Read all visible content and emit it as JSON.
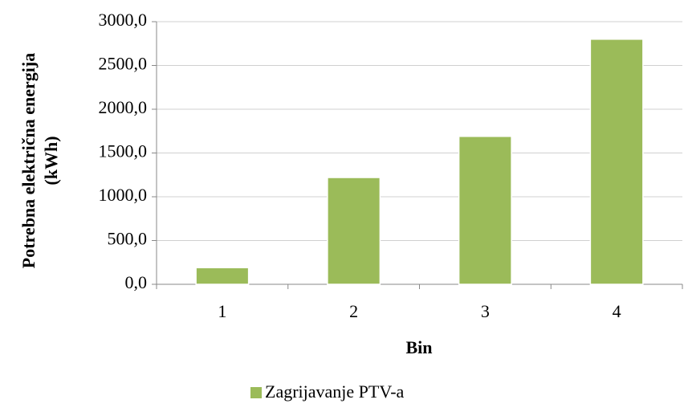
{
  "chart_data": {
    "type": "bar",
    "categories": [
      "1",
      "2",
      "3",
      "4"
    ],
    "series": [
      {
        "name": "Zagrijavanje PTV-a",
        "color": "#9bbb59",
        "values": [
          190,
          1220,
          1690,
          2800
        ]
      }
    ],
    "xlabel": "Bin",
    "ylabel": [
      "Potrebna električna energija",
      "(kWh)"
    ],
    "ylim": [
      0,
      3000
    ],
    "yticks": [
      {
        "value": 0,
        "label": "0,0"
      },
      {
        "value": 500,
        "label": "500,0"
      },
      {
        "value": 1000,
        "label": "1000,0"
      },
      {
        "value": 1500,
        "label": "1500,0"
      },
      {
        "value": 2000,
        "label": "2000,0"
      },
      {
        "value": 2500,
        "label": "2500,0"
      },
      {
        "value": 3000,
        "label": "3000,0"
      }
    ],
    "grid": true,
    "legend": "bottom"
  }
}
